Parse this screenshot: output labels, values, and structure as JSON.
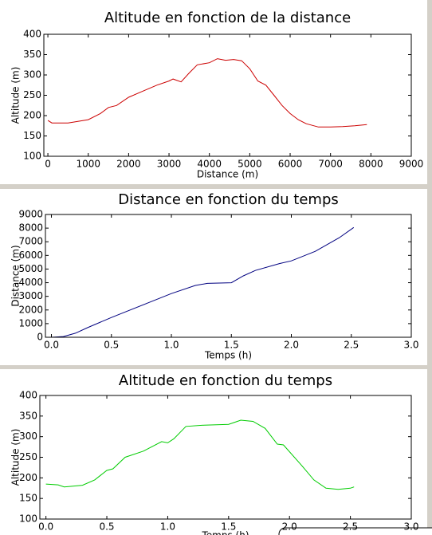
{
  "chart_data": [
    {
      "type": "line",
      "title": "Altitude en fonction de la distance",
      "xlabel": "Distance (m)",
      "ylabel": "Altitude (m)",
      "color": "#cc0000",
      "x": [
        0,
        100,
        500,
        1000,
        1300,
        1500,
        1700,
        2000,
        2300,
        2700,
        3000,
        3100,
        3300,
        3500,
        3700,
        4000,
        4200,
        4400,
        4600,
        4800,
        5000,
        5200,
        5400,
        5600,
        5800,
        6000,
        6200,
        6400,
        6700,
        7000,
        7300,
        7600,
        7900
      ],
      "values": [
        188,
        182,
        182,
        190,
        205,
        220,
        225,
        245,
        258,
        275,
        285,
        290,
        283,
        305,
        325,
        330,
        340,
        336,
        338,
        335,
        315,
        285,
        275,
        250,
        225,
        205,
        190,
        180,
        172,
        172,
        173,
        175,
        178
      ],
      "xlim": [
        -100,
        9000
      ],
      "xticks": [
        0,
        1000,
        2000,
        3000,
        4000,
        5000,
        6000,
        7000,
        8000,
        9000
      ],
      "ylim": [
        100,
        400
      ],
      "yticks": [
        100,
        150,
        200,
        250,
        300,
        350,
        400
      ]
    },
    {
      "type": "line",
      "title": "Distance en fonction du temps",
      "xlabel": "Temps (h)",
      "ylabel": "Distance (m)",
      "color": "#000080",
      "x": [
        0,
        0.1,
        0.2,
        0.3,
        0.5,
        0.6,
        0.8,
        1.0,
        1.2,
        1.3,
        1.5,
        1.6,
        1.7,
        1.9,
        2.0,
        2.2,
        2.4,
        2.52
      ],
      "values": [
        0,
        50,
        300,
        700,
        1450,
        1800,
        2500,
        3200,
        3800,
        3950,
        4000,
        4500,
        4900,
        5400,
        5600,
        6300,
        7300,
        8050
      ],
      "xlim": [
        -0.05,
        3.0
      ],
      "xticks": [
        {
          "value": 0,
          "label": "0.0"
        },
        0.5,
        {
          "value": 1,
          "label": "1.0"
        },
        1.5,
        {
          "value": 2,
          "label": "2.0"
        },
        2.5,
        {
          "value": 3,
          "label": "3.0"
        }
      ],
      "ylim": [
        0,
        9000
      ],
      "yticks": [
        0,
        1000,
        2000,
        3000,
        4000,
        5000,
        6000,
        7000,
        8000,
        9000
      ]
    },
    {
      "type": "line",
      "title": "Altitude en fonction du temps",
      "xlabel": "Temps (h)",
      "ylabel": "Altitude (m)",
      "color": "#00cc00",
      "x": [
        0,
        0.1,
        0.15,
        0.3,
        0.4,
        0.5,
        0.55,
        0.65,
        0.8,
        0.95,
        1.0,
        1.05,
        1.15,
        1.3,
        1.5,
        1.55,
        1.6,
        1.7,
        1.8,
        1.9,
        1.95,
        2.1,
        2.2,
        2.3,
        2.4,
        2.5,
        2.53
      ],
      "values": [
        185,
        183,
        178,
        182,
        195,
        218,
        222,
        250,
        265,
        288,
        285,
        295,
        325,
        328,
        330,
        335,
        340,
        337,
        320,
        282,
        280,
        230,
        195,
        175,
        172,
        175,
        178
      ],
      "xlim": [
        -0.05,
        3.0
      ],
      "xticks": [
        {
          "value": 0,
          "label": "0.0"
        },
        0.5,
        {
          "value": 1,
          "label": "1.0"
        },
        1.5,
        {
          "value": 2,
          "label": "2.0"
        },
        2.5,
        {
          "value": 3,
          "label": "3.0"
        }
      ],
      "ylim": [
        100,
        400
      ],
      "yticks": [
        100,
        150,
        200,
        250,
        300,
        350,
        400
      ]
    }
  ]
}
